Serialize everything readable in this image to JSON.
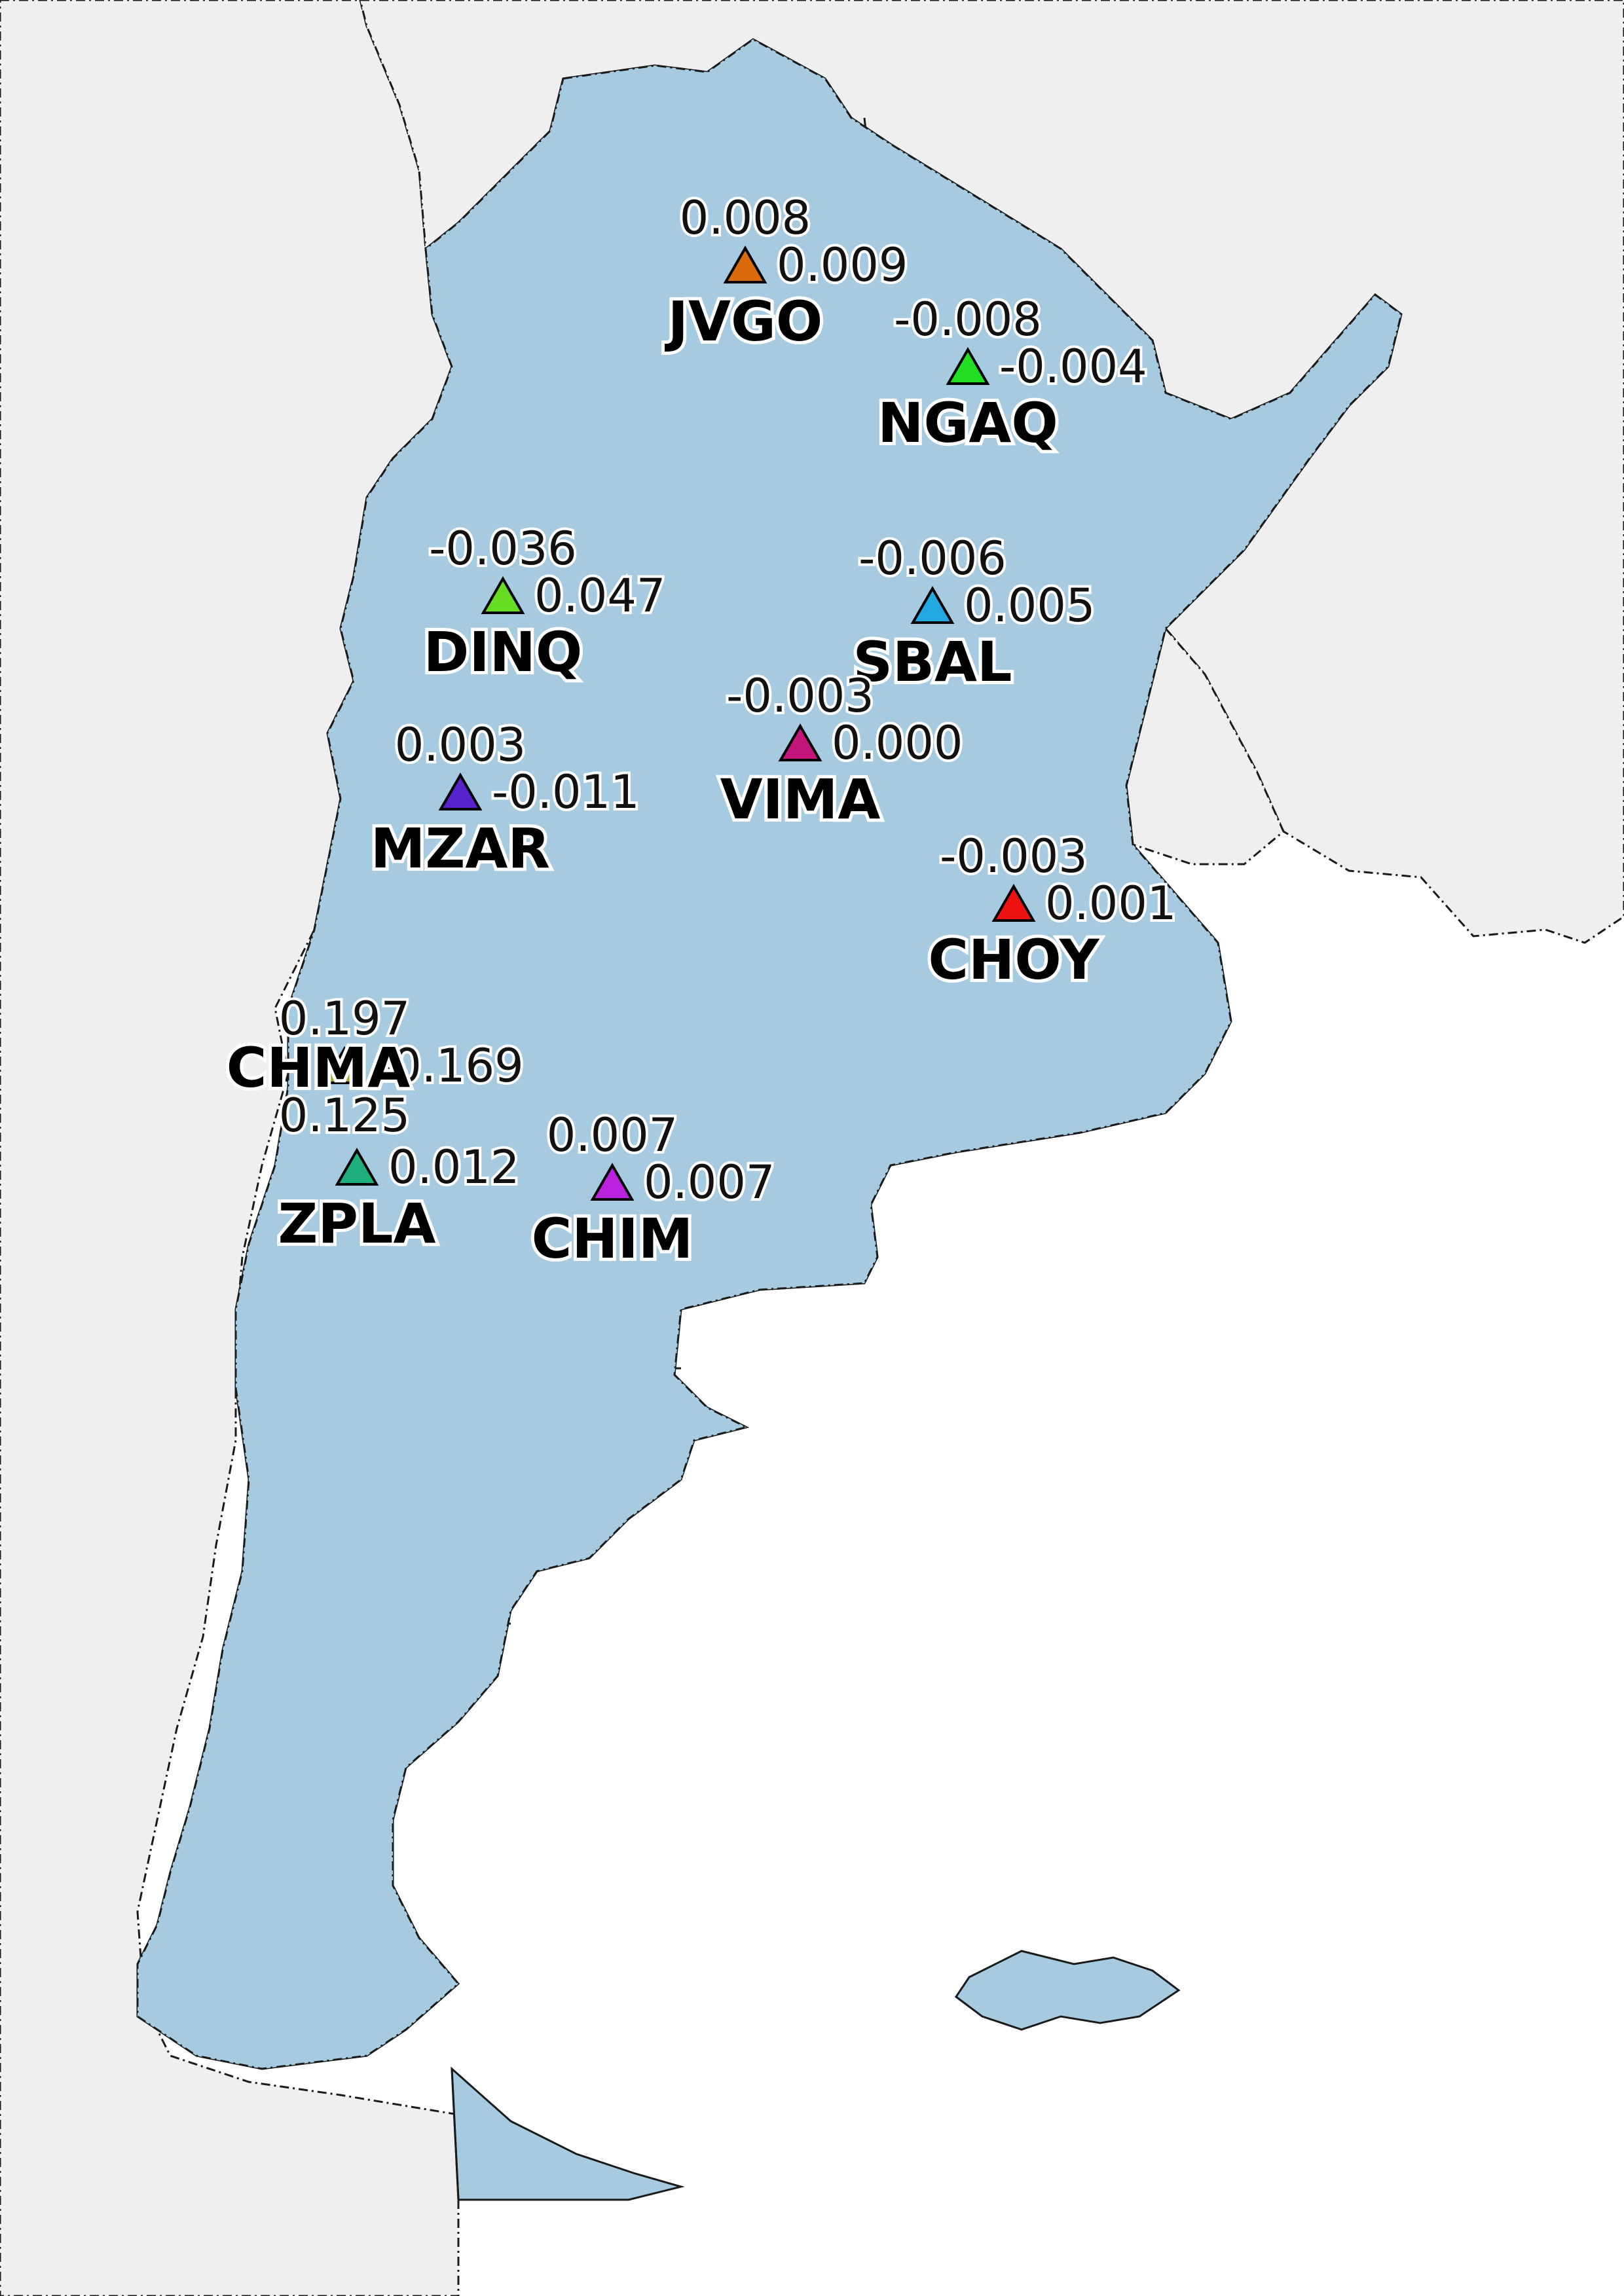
{
  "colors": {
    "ocean": "#ffffff",
    "neighbor_land": "#efefef",
    "argentina_land": "#a6cbe0",
    "border": "#1a1a1a"
  },
  "stations": [
    {
      "code": "JVGO",
      "value_top": "0.008",
      "value_right": "0.009",
      "color": "#d96b0c"
    },
    {
      "code": "NGAQ",
      "value_top": "-0.008",
      "value_right": "-0.004",
      "color": "#22dd22"
    },
    {
      "code": "DINQ",
      "value_top": "-0.036",
      "value_right": "0.047",
      "color": "#66dd22"
    },
    {
      "code": "SBAL",
      "value_top": "-0.006",
      "value_right": "0.005",
      "color": "#22a8e0"
    },
    {
      "code": "VIMA",
      "value_top": "-0.003",
      "value_right": "0.000",
      "color": "#c4167a"
    },
    {
      "code": "MZAR",
      "value_top": "0.003",
      "value_right": "-0.011",
      "color": "#5522cc"
    },
    {
      "code": "CHOY",
      "value_top": "-0.003",
      "value_right": "0.001",
      "color": "#ee1111"
    },
    {
      "code": "CHMA",
      "value_top": "0.197",
      "value_right": "-0.169",
      "value_bottom": "0.125",
      "color": "#a6a61c"
    },
    {
      "code": "ZPLA",
      "value_top": "",
      "value_right": "0.012",
      "color": "#1fae7c"
    },
    {
      "code": "CHIM",
      "value_top": "0.007",
      "value_right": "0.007",
      "color": "#bb22dd"
    }
  ]
}
